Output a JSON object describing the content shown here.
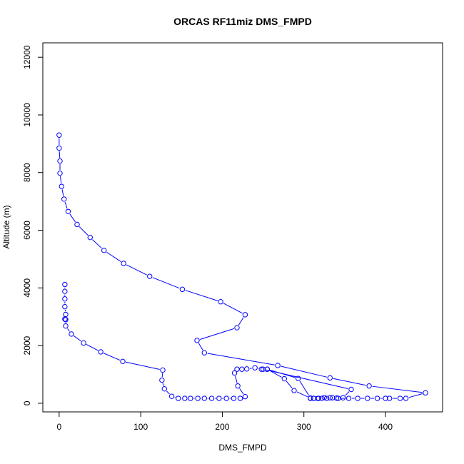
{
  "chart_data": {
    "type": "line",
    "title": "ORCAS RF11miz DMS_FMPD",
    "xlabel": "DMS_FMPD",
    "ylabel": "Altitude (m)",
    "xlim": [
      -20,
      470
    ],
    "ylim": [
      -300,
      12500
    ],
    "xticks": [
      0,
      100,
      200,
      300,
      400
    ],
    "yticks": [
      0,
      2000,
      4000,
      6000,
      8000,
      10000,
      12000
    ],
    "series_color": "#0000ff",
    "marker": "open-circle",
    "grid": false,
    "legend": "none",
    "series": [
      {
        "points": [
          [
            0,
            9300
          ],
          [
            0,
            8850
          ],
          [
            1,
            8400
          ],
          [
            1,
            7980
          ],
          [
            3,
            7520
          ],
          [
            6,
            7080
          ],
          [
            11,
            6650
          ],
          [
            22,
            6200
          ],
          [
            38,
            5750
          ],
          [
            55,
            5300
          ],
          [
            79,
            4850
          ],
          [
            111,
            4400
          ],
          [
            151,
            3950
          ],
          [
            198,
            3520
          ],
          [
            228,
            3070
          ],
          [
            218,
            2620
          ],
          [
            169,
            2180
          ],
          [
            178,
            1750
          ],
          [
            268,
            1310
          ],
          [
            332,
            880
          ],
          [
            380,
            600
          ],
          [
            449,
            360
          ],
          [
            425,
            170
          ],
          [
            418,
            170
          ],
          [
            405,
            170
          ],
          [
            400,
            170
          ],
          [
            390,
            170
          ],
          [
            378,
            170
          ],
          [
            366,
            170
          ],
          [
            355,
            170
          ],
          [
            342,
            170
          ],
          [
            335,
            190
          ],
          [
            328,
            170
          ],
          [
            322,
            170
          ],
          [
            317,
            170
          ],
          [
            312,
            170
          ],
          [
            308,
            170
          ],
          [
            312,
            170
          ],
          [
            318,
            170
          ],
          [
            325,
            200
          ],
          [
            332,
            190
          ],
          [
            340,
            180
          ],
          [
            348,
            190
          ],
          [
            358,
            480
          ],
          [
            250,
            1180
          ],
          [
            255,
            1180
          ],
          [
            293,
            860
          ],
          [
            308,
            180
          ],
          [
            288,
            440
          ],
          [
            276,
            850
          ],
          [
            255,
            1180
          ],
          [
            248,
            1180
          ],
          [
            240,
            1230
          ],
          [
            230,
            1190
          ],
          [
            224,
            1180
          ],
          [
            218,
            1180
          ],
          [
            215,
            1050
          ],
          [
            219,
            600
          ],
          [
            228,
            230
          ],
          [
            222,
            170
          ],
          [
            214,
            170
          ],
          [
            205,
            170
          ],
          [
            196,
            170
          ],
          [
            187,
            170
          ],
          [
            178,
            170
          ],
          [
            170,
            170
          ],
          [
            161,
            170
          ],
          [
            154,
            170
          ],
          [
            146,
            170
          ],
          [
            138,
            240
          ],
          [
            129,
            500
          ],
          [
            126,
            800
          ],
          [
            127,
            1150
          ],
          [
            78,
            1450
          ],
          [
            51,
            1780
          ],
          [
            30,
            2090
          ],
          [
            15,
            2400
          ],
          [
            8,
            2680
          ],
          [
            8,
            2900
          ],
          [
            7,
            2920
          ],
          [
            8,
            2900
          ],
          [
            8,
            3080
          ],
          [
            7,
            3350
          ],
          [
            7,
            3620
          ],
          [
            7,
            3880
          ],
          [
            7,
            4120
          ]
        ]
      }
    ]
  }
}
